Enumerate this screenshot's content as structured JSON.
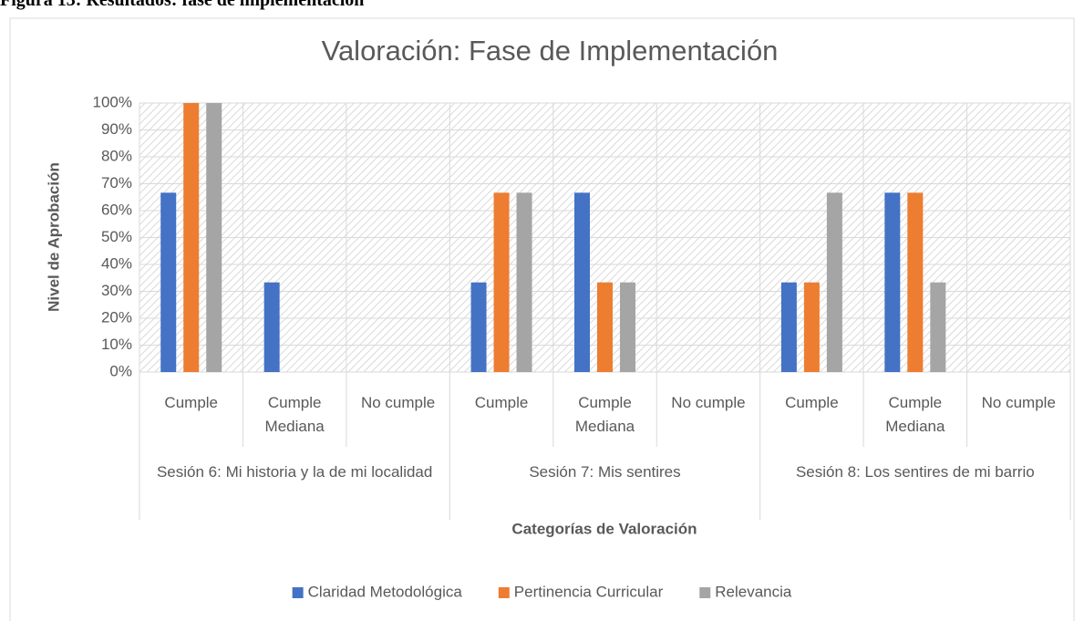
{
  "caption": "Figura 13: Resultados: fase de implementación",
  "chart_data": {
    "type": "bar",
    "title": "Valoración: Fase de Implementación",
    "x_label": "Categorías de Valoración",
    "y_label": "Nivel de Aprobación",
    "categories": [
      "Cumple",
      "Cumple Mediana",
      "No cumple",
      "Cumple",
      "Cumple Mediana",
      "No cumple",
      "Cumple",
      "Cumple Mediana",
      "No cumple"
    ],
    "category_groups": [
      "Sesión 6: Mi historia y la de mi localidad",
      "Sesión 7: Mis sentires",
      "Sesión 8: Los sentires de mi barrio"
    ],
    "series": [
      {
        "name": "Claridad Metodológica",
        "color": "#4472c4",
        "values": [
          66.67,
          33.33,
          0,
          33.33,
          66.67,
          0,
          33.33,
          66.67,
          0
        ]
      },
      {
        "name": "Pertinencia Curricular",
        "color": "#ed7d31",
        "values": [
          100,
          0,
          0,
          66.67,
          33.33,
          0,
          33.33,
          66.67,
          0
        ]
      },
      {
        "name": "Relevancia",
        "color": "#a5a5a5",
        "values": [
          100,
          0,
          0,
          66.67,
          33.33,
          0,
          66.67,
          33.33,
          0
        ]
      }
    ],
    "ylim": [
      0,
      100
    ],
    "yticks": [
      {
        "value": 0,
        "label": "0%"
      },
      {
        "value": 10,
        "label": "10%"
      },
      {
        "value": 20,
        "label": "20%"
      },
      {
        "value": 30,
        "label": "30%"
      },
      {
        "value": 40,
        "label": "40%"
      },
      {
        "value": 50,
        "label": "50%"
      },
      {
        "value": 60,
        "label": "60%"
      },
      {
        "value": 70,
        "label": "70%"
      },
      {
        "value": 80,
        "label": "80%"
      },
      {
        "value": 90,
        "label": "90%"
      },
      {
        "value": 100,
        "label": "100%"
      }
    ],
    "grid": true,
    "legend": "bottom"
  }
}
